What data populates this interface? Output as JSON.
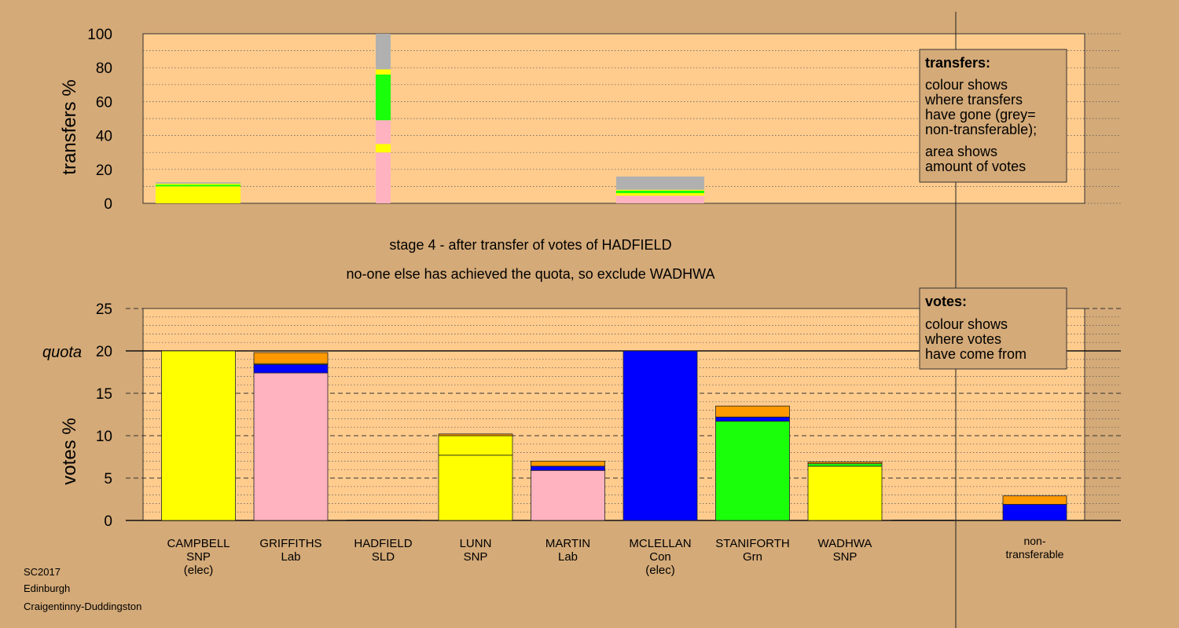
{
  "colors": {
    "background": "#d4aa78",
    "panel": "#ffcc8e",
    "SNP": "#ffff00",
    "Lab": "#ffb2c0",
    "Con": "#0000ff",
    "Grn": "#1aff0a",
    "SLD": "#ff9900",
    "nontransferable": "#b0b0b0"
  },
  "titles": {
    "line1": "stage 4 - after transfer of votes of HADFIELD",
    "line2": "no-one else has achieved the quota, so exclude WADHWA"
  },
  "footer": {
    "line1": "SC2017",
    "line2": "Edinburgh",
    "line3": "Craigentinny-Duddingston"
  },
  "legend_transfers": {
    "title": "transfers:",
    "lines": [
      "colour shows",
      "where transfers",
      "have gone (grey=",
      "non-transferable);",
      "area shows",
      "amount of votes"
    ]
  },
  "legend_votes": {
    "title": "votes:",
    "lines": [
      "colour shows",
      "where votes",
      "have come from"
    ]
  },
  "chart_data": [
    {
      "type": "bar",
      "id": "transfers",
      "ylabel": "transfers %",
      "ylim": [
        0,
        100
      ],
      "yticks": [
        0,
        20,
        40,
        60,
        80,
        100
      ],
      "columns": [
        {
          "candidate": "CAMPBELL",
          "segments": [
            {
              "party": "SNP",
              "value": 10.0
            },
            {
              "party": "Grn",
              "value": 1.0
            },
            {
              "party": "SNP",
              "value": 0.6
            },
            {
              "party": "nontransferable",
              "value": 0.8
            }
          ]
        },
        {
          "candidate": "GRIFFITHS",
          "segments": [
            {
              "party": "Lab",
              "value": 30.0
            },
            {
              "party": "SNP",
              "value": 5.0
            },
            {
              "party": "Lab",
              "value": 14.0
            },
            {
              "party": "Grn",
              "value": 27.0
            },
            {
              "party": "SNP",
              "value": 3.0
            },
            {
              "party": "nontransferable",
              "value": 21.0
            }
          ]
        },
        {
          "candidate": "LUNN",
          "segments": [
            {
              "party": "Lab",
              "value": 4.5
            },
            {
              "party": "SNP",
              "value": 1.5
            },
            {
              "party": "Grn",
              "value": 1.5
            },
            {
              "party": "SNP",
              "value": 0.5
            },
            {
              "party": "nontransferable",
              "value": 7.8
            }
          ]
        }
      ]
    },
    {
      "type": "bar",
      "id": "votes",
      "ylabel": "votes %",
      "ylim": [
        0,
        25
      ],
      "yticks": [
        0,
        5,
        10,
        15,
        20,
        25
      ],
      "quota": 20,
      "quota_label": "quota",
      "categories": [
        {
          "name": "CAMPBELL",
          "party": "SNP",
          "note": "(elec)"
        },
        {
          "name": "GRIFFITHS",
          "party": "Lab",
          "note": ""
        },
        {
          "name": "HADFIELD",
          "party": "SLD",
          "note": ""
        },
        {
          "name": "LUNN",
          "party": "SNP",
          "note": ""
        },
        {
          "name": "MARTIN",
          "party": "Lab",
          "note": ""
        },
        {
          "name": "MCLELLAN",
          "party": "Con",
          "note": "(elec)"
        },
        {
          "name": "STANIFORTH",
          "party": "Grn",
          "note": ""
        },
        {
          "name": "WADHWA",
          "party": "SNP",
          "note": ""
        }
      ],
      "stacks": [
        [
          {
            "party": "SNP",
            "value": 20.0
          }
        ],
        [
          {
            "party": "Lab",
            "value": 17.4
          },
          {
            "party": "Con",
            "value": 1.0
          },
          {
            "party": "SNP",
            "value": 0.1
          },
          {
            "party": "SLD",
            "value": 1.3
          }
        ],
        [],
        [
          {
            "party": "SNP",
            "value": 7.7
          },
          {
            "party": "SNP",
            "value": 2.3
          },
          {
            "party": "SLD",
            "value": 0.2
          }
        ],
        [
          {
            "party": "Lab",
            "value": 5.9
          },
          {
            "party": "Con",
            "value": 0.5
          },
          {
            "party": "SLD",
            "value": 0.6
          }
        ],
        [
          {
            "party": "Con",
            "value": 20.0
          }
        ],
        [
          {
            "party": "Grn",
            "value": 11.7
          },
          {
            "party": "Con",
            "value": 0.5
          },
          {
            "party": "SLD",
            "value": 1.3
          }
        ],
        [
          {
            "party": "SNP",
            "value": 6.4
          },
          {
            "party": "Grn",
            "value": 0.3
          },
          {
            "party": "SLD",
            "value": 0.2
          }
        ]
      ],
      "nontransferable": {
        "label_lines": [
          "non-",
          "transferable"
        ],
        "stack": [
          {
            "party": "Con",
            "value": 1.9
          },
          {
            "party": "SLD",
            "value": 1.0
          }
        ]
      }
    }
  ]
}
